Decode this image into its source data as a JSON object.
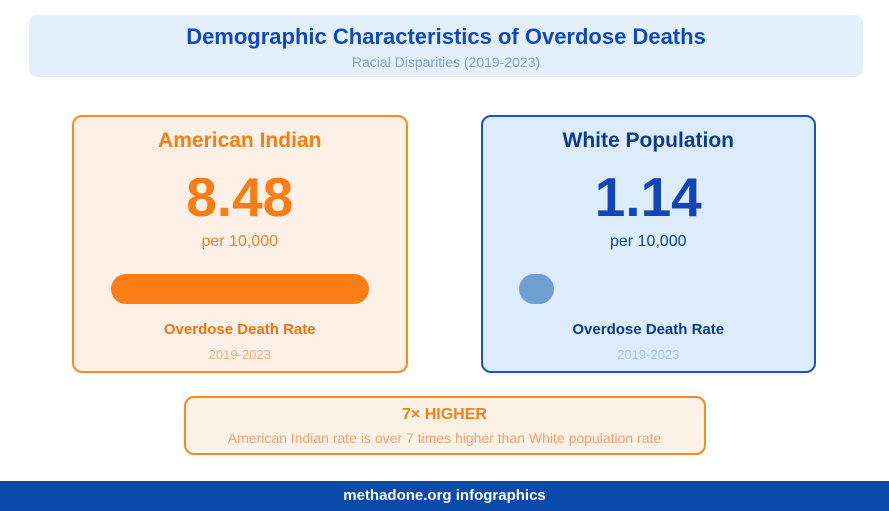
{
  "header": {
    "title": "Demographic Characteristics of Overdose Deaths",
    "subtitle": "Racial Disparities (2019-2023)"
  },
  "cards": [
    {
      "name": "American Indian",
      "value": "8.48",
      "unit": "per 10,000",
      "label": "Overdose Death Rate",
      "years": "2019-2023",
      "accent_color": "#f97c15",
      "bar_color": "#fb7d14",
      "card_bg": "#fdf1e7",
      "border_color": "#f98a20"
    },
    {
      "name": "White Population",
      "value": "1.14",
      "unit": "per 10,000",
      "label": "Overdose Death Rate",
      "years": "2019-2023",
      "accent_color": "#0a3a8e",
      "bar_color": "#6f9ed3",
      "card_bg": "#ddecfb",
      "border_color": "#1d4fc0"
    }
  ],
  "callout": {
    "headline": "7× HIGHER",
    "description": "American Indian rate is over 7 times higher than White population rate"
  },
  "footer": {
    "text": "methadone.org infographics"
  },
  "colors": {
    "title_blue": "#1149bc",
    "subtitle_blue": "#7ca4da",
    "header_bg": "#e4effc",
    "footer_bg": "#0b4aad",
    "orange": "#f97c15",
    "dark_blue": "#0a3a8e"
  },
  "chart_data": {
    "type": "bar",
    "title": "Demographic Characteristics of Overdose Deaths",
    "subtitle": "Racial Disparities (2019-2023)",
    "categories": [
      "American Indian",
      "White Population"
    ],
    "values": [
      8.48,
      1.14
    ],
    "unit": "per 10,000",
    "metric": "Overdose Death Rate",
    "period": "2019-2023",
    "annotation": "7× HIGHER — American Indian rate is over 7 times higher than White population rate",
    "orientation": "horizontal",
    "grid": false,
    "legend": false
  }
}
